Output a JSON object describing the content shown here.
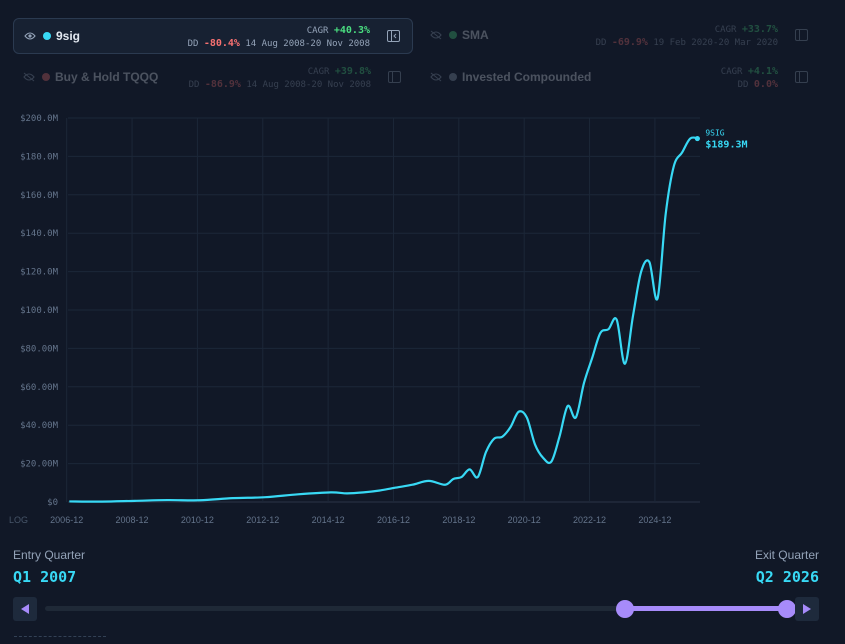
{
  "legend": [
    {
      "name": "9sig",
      "cagr_label": "CAGR",
      "cagr": "+40.3%",
      "dd_label": "DD",
      "dd": "-80.4%",
      "dd_dates": "14 Aug 2008-20 Nov 2008",
      "color": "#38d9f5",
      "visible": true
    },
    {
      "name": "SMA",
      "cagr_label": "CAGR",
      "cagr": "+33.7%",
      "dd_label": "DD",
      "dd": "-69.9%",
      "dd_dates": "19 Feb 2020-20 Mar 2020",
      "color": "#4ade80",
      "visible": false
    },
    {
      "name": "Buy & Hold TQQQ",
      "cagr_label": "CAGR",
      "cagr": "+39.8%",
      "dd_label": "DD",
      "dd": "-86.9%",
      "dd_dates": "14 Aug 2008-20 Nov 2008",
      "color": "#f87171",
      "visible": false
    },
    {
      "name": "Invested Compounded",
      "cagr_label": "CAGR",
      "cagr": "+4.1%",
      "dd_label": "DD",
      "dd": "0.0%",
      "dd_dates": "",
      "color": "#94a3b8",
      "visible": false
    }
  ],
  "log_label": "LOG",
  "chart_data": {
    "type": "line",
    "ylim": [
      0,
      200
    ],
    "y_tick_labels": [
      "$0",
      "$20.00M",
      "$40.00M",
      "$60.00M",
      "$80.00M",
      "$100.0M",
      "$120.0M",
      "$140.0M",
      "$160.0M",
      "$180.0M",
      "$200.0M"
    ],
    "x_tick_labels": [
      "2006-12",
      "2008-12",
      "2010-12",
      "2012-12",
      "2014-12",
      "2016-12",
      "2018-12",
      "2020-12",
      "2022-12",
      "2024-12"
    ],
    "grid": true,
    "end_label": "9SIG",
    "end_value_label": "$189.3M",
    "series": [
      {
        "name": "9sig",
        "color": "#38d9f5",
        "x": [
          2007.0,
          2008.0,
          2009.0,
          2010.0,
          2011.0,
          2012.0,
          2013.0,
          2014.0,
          2015.0,
          2015.5,
          2016.0,
          2016.5,
          2017.0,
          2017.5,
          2018.0,
          2018.5,
          2018.75,
          2019.0,
          2019.25,
          2019.5,
          2019.75,
          2020.0,
          2020.25,
          2020.5,
          2020.75,
          2021.0,
          2021.25,
          2021.5,
          2021.75,
          2022.0,
          2022.25,
          2022.5,
          2022.75,
          2023.0,
          2023.25,
          2023.5,
          2023.75,
          2024.0,
          2024.25,
          2024.5,
          2024.75,
          2025.0,
          2025.25,
          2025.5,
          2025.75,
          2026.0,
          2026.25
        ],
        "y": [
          0.3,
          0.2,
          0.6,
          1.0,
          0.9,
          2.0,
          2.5,
          4.0,
          5.0,
          4.5,
          5.0,
          6.0,
          7.5,
          9.0,
          11.0,
          9.0,
          12.0,
          13.0,
          17.0,
          13.0,
          26.0,
          33.0,
          34.0,
          39.0,
          47.0,
          44.0,
          30.0,
          23.0,
          21.0,
          34.0,
          50.0,
          44.0,
          62.0,
          75.0,
          88.0,
          90.0,
          95.0,
          72.0,
          97.0,
          120.0,
          125.0,
          106.0,
          150.0,
          175.0,
          182.0,
          189.3,
          189.3
        ]
      }
    ]
  },
  "entry": {
    "label": "Entry Quarter",
    "value": "Q1 2007"
  },
  "exit": {
    "label": "Exit Quarter",
    "value": "Q2 2026"
  },
  "slider": {
    "start_fraction": 0.0,
    "end_fraction": 1.0
  }
}
